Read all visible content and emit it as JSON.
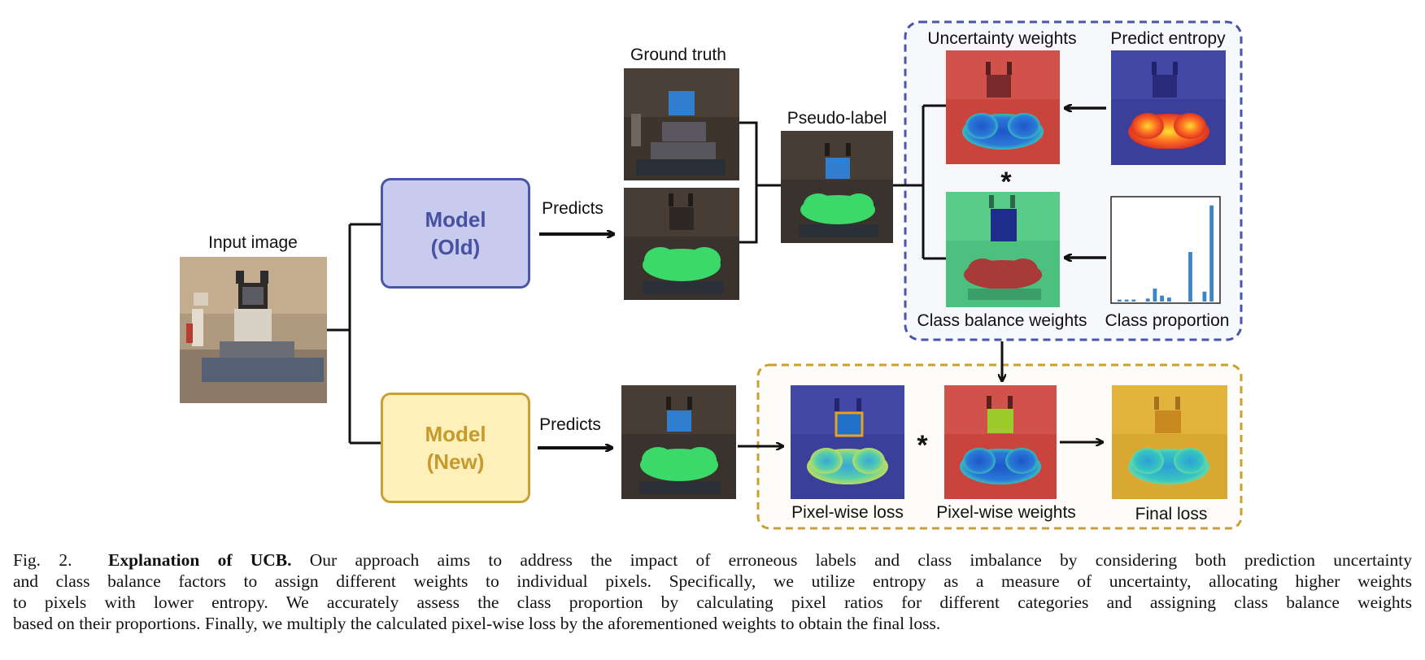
{
  "labels": {
    "input_image": "Input image",
    "ground_truth": "Ground truth",
    "pseudo_label": "Pseudo-label",
    "uncertainty_weights": "Uncertainty weights",
    "predict_entropy": "Predict entropy",
    "class_balance_weights": "Class balance weights",
    "class_proportion": "Class proportion",
    "pixel_wise_loss": "Pixel-wise loss",
    "pixel_wise_weights": "Pixel-wise weights",
    "final_loss": "Final loss",
    "predicts_old": "Predicts",
    "predicts_new": "Predicts",
    "multiply_top": "*",
    "multiply_bottom": "*"
  },
  "models": {
    "old_line1": "Model",
    "old_line2": "(Old)",
    "new_line1": "Model",
    "new_line2": "(New)"
  },
  "colors": {
    "old_model_fill": "#c8cbed",
    "old_model_border": "#4a55a9",
    "new_model_fill": "#fdf0bb",
    "new_model_border": "#c9a035",
    "top_panel_border": "#4a55a9",
    "bottom_panel_border": "#c9a035",
    "histogram_bar": "#3d86c6"
  },
  "class_proportion_bars": [
    0.02,
    0.02,
    0.02,
    0.0,
    0.03,
    0.13,
    0.06,
    0.04,
    0.0,
    0.0,
    0.5,
    0.0,
    0.1,
    0.97
  ],
  "caption": {
    "fig_label": "Fig. 2.",
    "title": "Explanation of UCB.",
    "line1_rest": "Our approach aims to address the impact of erroneous labels and class imbalance by considering both prediction uncertainty",
    "line2": "and class balance factors to assign different weights to individual pixels. Specifically, we utilize entropy as a measure of uncertainty, allocating higher weights",
    "line3": "to pixels with lower entropy. We accurately assess the class proportion by calculating pixel ratios for different categories and assigning class balance weights",
    "line4": "based on their proportions. Finally, we multiply the calculated pixel-wise loss by the aforementioned weights to obtain the final loss."
  }
}
